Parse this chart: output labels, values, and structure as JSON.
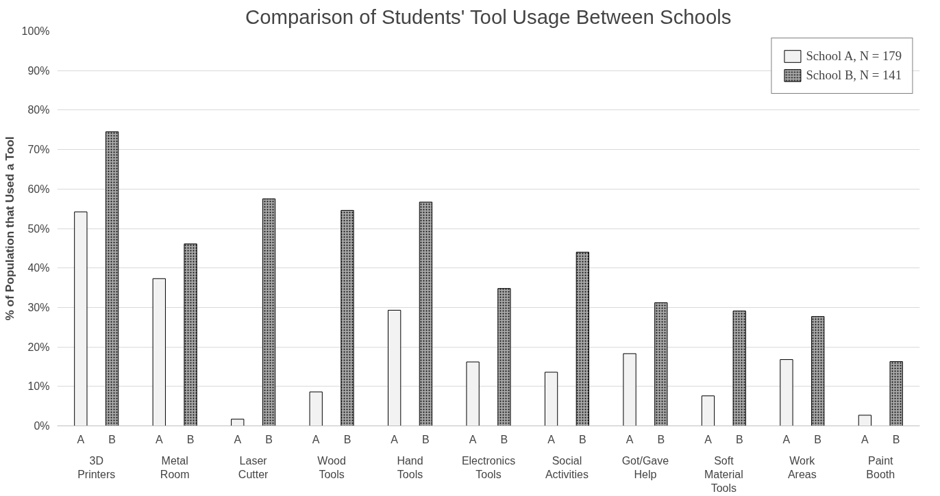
{
  "chart_data": {
    "type": "bar",
    "title": "Comparison of Students' Tool Usage Between Schools",
    "ylabel": "% of Population that Used a Tool",
    "categories": [
      "3D Printers",
      "Metal Room",
      "Laser Cutter",
      "Wood Tools",
      "Hand Tools",
      "Electronics Tools",
      "Social Activities",
      "Got/Gave Help",
      "Soft Material Tools",
      "Work Areas",
      "Paint Booth"
    ],
    "series": [
      {
        "name": "School A, N = 179",
        "color": "#f2f2f2",
        "values": [
          54.2,
          37.3,
          1.7,
          8.6,
          29.3,
          16.2,
          13.6,
          18.3,
          7.6,
          16.8,
          2.7
        ]
      },
      {
        "name": "School B, N = 141",
        "color": "#a6a6a6",
        "values": [
          74.5,
          46.1,
          57.5,
          54.6,
          56.7,
          34.8,
          44.0,
          31.2,
          29.1,
          27.7,
          16.3
        ]
      }
    ],
    "annotations": [
      "A",
      "B"
    ],
    "ylim": [
      0,
      100
    ],
    "yticks": [
      {
        "value": 0,
        "label": "0%"
      },
      {
        "value": 10,
        "label": "10%"
      },
      {
        "value": 20,
        "label": "20%"
      },
      {
        "value": 30,
        "label": "30%"
      },
      {
        "value": 40,
        "label": "40%"
      },
      {
        "value": 50,
        "label": "50%"
      },
      {
        "value": 60,
        "label": "60%"
      },
      {
        "value": 70,
        "label": "70%"
      },
      {
        "value": 80,
        "label": "80%"
      },
      {
        "value": 90,
        "label": "90%"
      },
      {
        "value": 100,
        "label": "100%"
      }
    ],
    "grid": "y",
    "legend": "top right"
  }
}
